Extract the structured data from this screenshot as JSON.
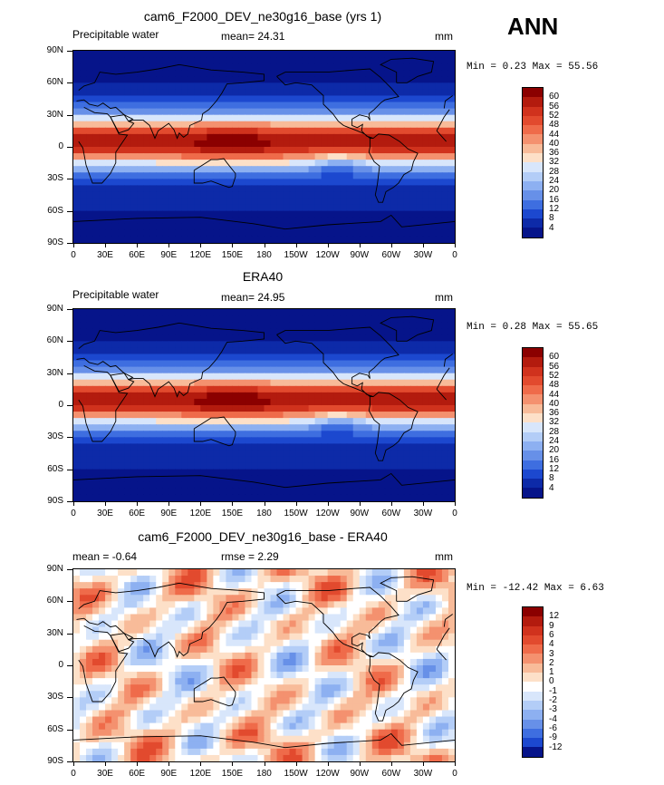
{
  "season": "ANN",
  "panels": [
    {
      "title": "cam6_F2000_DEV_ne30g16_base (yrs 1)",
      "left_label": "Precipitable water",
      "center_label": "mean=  24.31",
      "units": "mm",
      "minmax": "Min =   0.23 Max =  55.56",
      "colorbar": {
        "labels": [
          "60",
          "56",
          "52",
          "48",
          "44",
          "40",
          "36",
          "32",
          "28",
          "24",
          "20",
          "16",
          "12",
          "8",
          "4"
        ],
        "colors": [
          "#8b0000",
          "#b31b0e",
          "#d0321d",
          "#e24a2e",
          "#ef6b4a",
          "#f4916f",
          "#f8bb99",
          "#fde0c8",
          "#d8e6fb",
          "#b3cdf7",
          "#8db0f1",
          "#6790e8",
          "#3e6ee0",
          "#1c48cf",
          "#0d2aa8",
          "#06148a"
        ]
      },
      "map_style": "field"
    },
    {
      "title": "ERA40",
      "left_label": "Precipitable water",
      "center_label": "mean=  24.95",
      "units": "mm",
      "minmax": "Min =   0.28 Max =  55.65",
      "colorbar": {
        "labels": [
          "60",
          "56",
          "52",
          "48",
          "44",
          "40",
          "36",
          "32",
          "28",
          "24",
          "20",
          "16",
          "12",
          "8",
          "4"
        ],
        "colors": [
          "#8b0000",
          "#b31b0e",
          "#d0321d",
          "#e24a2e",
          "#ef6b4a",
          "#f4916f",
          "#f8bb99",
          "#fde0c8",
          "#d8e6fb",
          "#b3cdf7",
          "#8db0f1",
          "#6790e8",
          "#3e6ee0",
          "#1c48cf",
          "#0d2aa8",
          "#06148a"
        ]
      },
      "map_style": "field"
    },
    {
      "title": "cam6_F2000_DEV_ne30g16_base - ERA40",
      "left_label": "mean =  -0.64",
      "center_label": "rmse =   2.29",
      "units": "mm",
      "minmax": "Min = -12.42 Max =   6.63",
      "colorbar": {
        "labels": [
          "12",
          "9",
          "6",
          "4",
          "3",
          "2",
          "1",
          "0",
          "-1",
          "-2",
          "-3",
          "-4",
          "-6",
          "-9",
          "-12"
        ],
        "colors": [
          "#8b0000",
          "#b31b0e",
          "#d0321d",
          "#e24a2e",
          "#ef6b4a",
          "#f4916f",
          "#f8bb99",
          "#fde0c8",
          "#ffffff",
          "#d8e6fb",
          "#b3cdf7",
          "#8db0f1",
          "#6790e8",
          "#3e6ee0",
          "#1c48cf",
          "#06148a"
        ]
      },
      "map_style": "diff"
    }
  ],
  "lat_labels": [
    "90N",
    "60N",
    "30N",
    "0",
    "30S",
    "60S",
    "90S"
  ],
  "lon_labels": [
    "0",
    "30E",
    "60E",
    "90E",
    "120E",
    "150E",
    "180",
    "150W",
    "120W",
    "90W",
    "60W",
    "30W",
    "0"
  ]
}
